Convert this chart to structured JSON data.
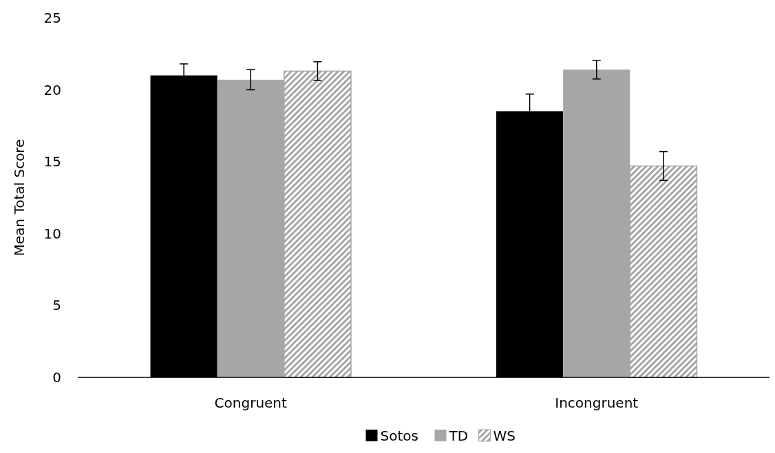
{
  "chart_data": {
    "type": "bar",
    "ylabel": "Mean Total Score",
    "categories": [
      "Congruent",
      "Incongruent"
    ],
    "series": [
      {
        "name": "Sotos",
        "color": "#000000",
        "values": [
          21.0,
          18.5
        ],
        "errors": [
          0.8,
          1.2
        ]
      },
      {
        "name": "TD",
        "color": "#a6a6a6",
        "values": [
          20.7,
          21.4
        ],
        "errors": [
          0.7,
          0.65
        ]
      },
      {
        "name": "WS",
        "color": "#a6a6a6",
        "values": [
          21.3,
          14.7
        ],
        "errors": [
          0.65,
          1.0
        ]
      }
    ],
    "ylim": [
      0,
      25
    ],
    "yticks": [
      0,
      5,
      10,
      15,
      20,
      25
    ],
    "grid": false,
    "legend": "bottom"
  }
}
